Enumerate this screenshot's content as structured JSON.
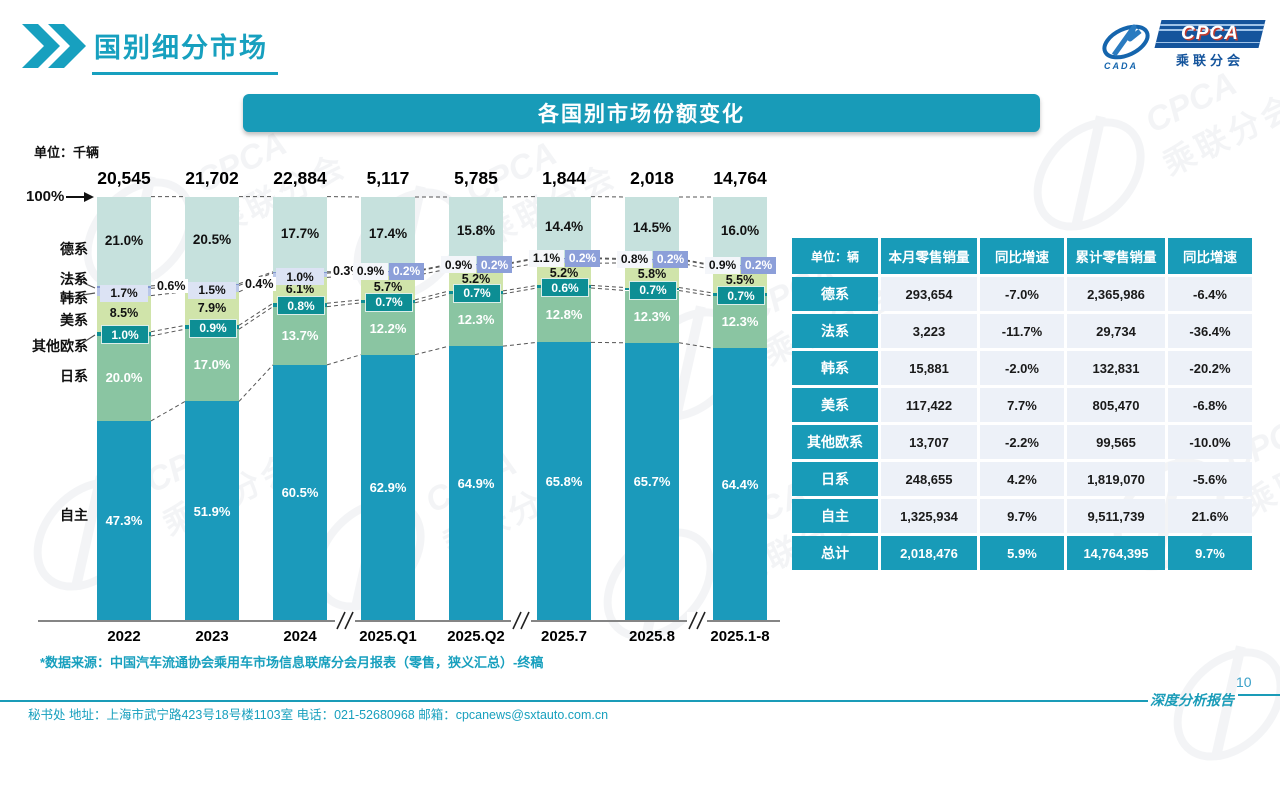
{
  "page": {
    "title": "国别细分市场",
    "page_number": "10",
    "footer_left": "秘书处  地址：上海市武宁路423号18号楼1103室 电话：021-52680968  邮箱：cpcanews@sxtauto.com.cn",
    "footer_right": "深度分析报告"
  },
  "logo": {
    "cpca": "CPCA",
    "subtitle": "乘联分会",
    "cada": "CADA"
  },
  "chart": {
    "banner_title": "各国别市场份额变化",
    "unit_label": "单位：千辆",
    "y_top_label": "100%",
    "source_note": "*数据来源：中国汽车流通协会乘用车市场信息联席分会月报表（零售，狭义汇总）-终稿",
    "category_labels_top_down": [
      "德系",
      "法系",
      "韩系",
      "美系",
      "其他欧系",
      "日系",
      "自主"
    ]
  },
  "chart_data": {
    "type": "bar",
    "stacked": true,
    "title": "各国别市场份额变化",
    "unit": "percent share of retail sales",
    "categories": [
      "2022",
      "2023",
      "2024",
      "2025.Q1",
      "2025.Q2",
      "2025.7",
      "2025.8",
      "2025.1-8"
    ],
    "totals_thousand_vehicles": [
      "20,545",
      "21,702",
      "22,884",
      "5,117",
      "5,785",
      "1,844",
      "2,018",
      "14,764"
    ],
    "axis_breaks_after": [
      "2024",
      "2025.Q2",
      "2025.8"
    ],
    "ylim": [
      0,
      100
    ],
    "grid": false,
    "series_bottom_up": [
      {
        "name": "自主",
        "color": "#1B9ABB",
        "values": [
          47.3,
          51.9,
          60.5,
          62.9,
          64.9,
          65.8,
          65.7,
          64.4
        ]
      },
      {
        "name": "日系",
        "color": "#8AC5A2",
        "values": [
          20.0,
          17.0,
          13.7,
          12.2,
          12.3,
          12.8,
          12.3,
          12.3
        ]
      },
      {
        "name": "其他欧系",
        "color": "#0D8E94",
        "values": [
          1.0,
          0.9,
          0.8,
          0.7,
          0.7,
          0.6,
          0.7,
          0.7
        ]
      },
      {
        "name": "美系",
        "color": "#D0E4AA",
        "values": [
          8.5,
          7.9,
          6.1,
          5.7,
          5.2,
          5.2,
          5.8,
          5.5
        ]
      },
      {
        "name": "韩系",
        "color": "#B9C7E8",
        "values": [
          1.7,
          1.5,
          1.0,
          0.9,
          0.9,
          1.1,
          0.8,
          0.9
        ]
      },
      {
        "name": "法系",
        "color": "#8498D1",
        "values": [
          0.6,
          0.4,
          0.3,
          0.2,
          0.2,
          0.2,
          0.2,
          0.2
        ]
      },
      {
        "name": "德系",
        "color": "#C6E1DD",
        "values": [
          21.0,
          20.5,
          17.7,
          17.4,
          15.8,
          14.4,
          14.5,
          16.0
        ]
      }
    ]
  },
  "table": {
    "unit_header": "单位：辆",
    "headers": [
      "本月零售销量",
      "同比增速",
      "累计零售销量",
      "同比增速"
    ],
    "rows": [
      {
        "label": "德系",
        "cells": [
          "293,654",
          "-7.0%",
          "2,365,986",
          "-6.4%"
        ]
      },
      {
        "label": "法系",
        "cells": [
          "3,223",
          "-11.7%",
          "29,734",
          "-36.4%"
        ]
      },
      {
        "label": "韩系",
        "cells": [
          "15,881",
          "-2.0%",
          "132,831",
          "-20.2%"
        ]
      },
      {
        "label": "美系",
        "cells": [
          "117,422",
          "7.7%",
          "805,470",
          "-6.8%"
        ]
      },
      {
        "label": "其他欧系",
        "cells": [
          "13,707",
          "-2.2%",
          "99,565",
          "-10.0%"
        ]
      },
      {
        "label": "日系",
        "cells": [
          "248,655",
          "4.2%",
          "1,819,070",
          "-5.6%"
        ]
      },
      {
        "label": "自主",
        "cells": [
          "1,325,934",
          "9.7%",
          "9,511,739",
          "21.6%"
        ]
      }
    ],
    "total_row": {
      "label": "总计",
      "cells": [
        "2,018,476",
        "5.9%",
        "14,764,395",
        "9.7%"
      ]
    }
  }
}
